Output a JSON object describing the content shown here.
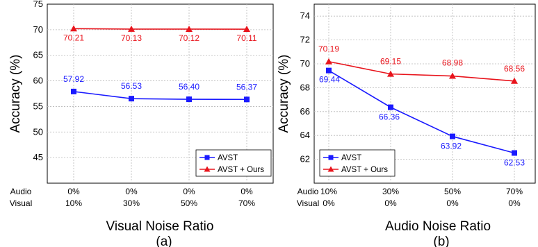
{
  "chart_data": [
    {
      "type": "line",
      "panel_label": "(a)",
      "xlabel": "Visual Noise Ratio",
      "ylabel": "Accuracy (%)",
      "ylim": [
        40,
        75
      ],
      "yticks": [
        45,
        50,
        55,
        60,
        65,
        70,
        75
      ],
      "grid": true,
      "legend_position": "bottom-right",
      "row_labels": [
        "Audio",
        "Visual"
      ],
      "categories": [
        {
          "audio": "0%",
          "visual": "10%"
        },
        {
          "audio": "0%",
          "visual": "30%"
        },
        {
          "audio": "0%",
          "visual": "50%"
        },
        {
          "audio": "0%",
          "visual": "70%"
        }
      ],
      "series": [
        {
          "name": "AVST",
          "color": "#1a1aff",
          "marker": "square",
          "values": [
            57.92,
            56.53,
            56.4,
            56.37
          ],
          "labels": [
            "57.92",
            "56.53",
            "56.40",
            "56.37"
          ]
        },
        {
          "name": "AVST + Ours",
          "color": "#e8141c",
          "marker": "triangle",
          "values": [
            70.21,
            70.13,
            70.12,
            70.11
          ],
          "labels": [
            "70.21",
            "70.13",
            "70.12",
            "70.11"
          ]
        }
      ]
    },
    {
      "type": "line",
      "panel_label": "(b)",
      "xlabel": "Audio Noise Ratio",
      "ylabel": "Accuracy (%)",
      "ylim": [
        60,
        75
      ],
      "yticks": [
        62,
        64,
        66,
        68,
        70,
        72,
        74
      ],
      "grid": true,
      "legend_position": "bottom-left",
      "row_labels": [
        "Audio",
        "Visual"
      ],
      "categories": [
        {
          "audio": "10%",
          "visual": "0%"
        },
        {
          "audio": "30%",
          "visual": "0%"
        },
        {
          "audio": "50%",
          "visual": "0%"
        },
        {
          "audio": "70%",
          "visual": "0%"
        }
      ],
      "series": [
        {
          "name": "AVST",
          "color": "#1a1aff",
          "marker": "square",
          "values": [
            69.44,
            66.36,
            63.92,
            62.53
          ],
          "labels": [
            "69.44",
            "66.36",
            "63.92",
            "62.53"
          ]
        },
        {
          "name": "AVST + Ours",
          "color": "#e8141c",
          "marker": "triangle",
          "values": [
            70.19,
            69.15,
            68.98,
            68.56
          ],
          "labels": [
            "70.19",
            "69.15",
            "68.98",
            "68.56"
          ]
        }
      ]
    }
  ]
}
